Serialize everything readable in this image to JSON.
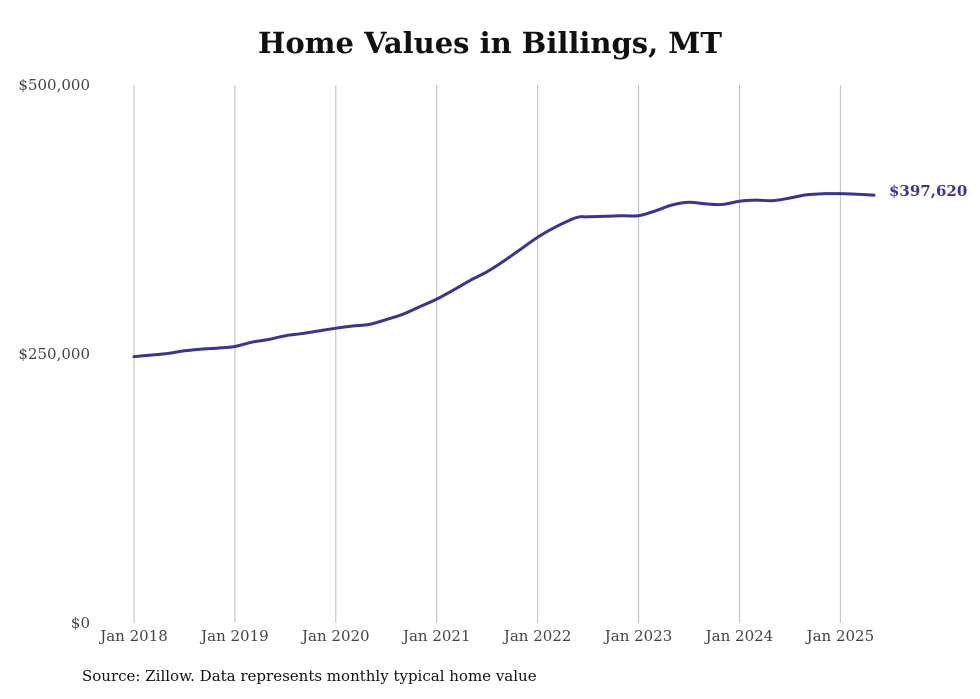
{
  "chart_data": {
    "type": "line",
    "title": "Home Values in Billings, MT",
    "source": "Source: Zillow. Data represents monthly typical home value",
    "xlabel": "",
    "ylabel": "",
    "ylim": [
      0,
      500000
    ],
    "yticks": [
      {
        "value": 0,
        "label": "$0"
      },
      {
        "value": 250000,
        "label": "$250,000"
      },
      {
        "value": 500000,
        "label": "$500,000"
      }
    ],
    "xlim": [
      "2018-01",
      "2025-05"
    ],
    "xticks": [
      {
        "value": "2018-01",
        "label": "Jan 2018"
      },
      {
        "value": "2019-01",
        "label": "Jan 2019"
      },
      {
        "value": "2020-01",
        "label": "Jan 2020"
      },
      {
        "value": "2021-01",
        "label": "Jan 2021"
      },
      {
        "value": "2022-01",
        "label": "Jan 2022"
      },
      {
        "value": "2023-01",
        "label": "Jan 2023"
      },
      {
        "value": "2024-01",
        "label": "Jan 2024"
      },
      {
        "value": "2025-01",
        "label": "Jan 2025"
      }
    ],
    "grid": {
      "vertical": true,
      "horizontal": false
    },
    "line_color": "#3a3591",
    "end_label": "$397,620",
    "series": [
      {
        "x": [
          "2018-01",
          "2018-03",
          "2018-05",
          "2018-07",
          "2018-09",
          "2018-11",
          "2019-01",
          "2019-03",
          "2019-05",
          "2019-07",
          "2019-09",
          "2019-11",
          "2020-01",
          "2020-03",
          "2020-05",
          "2020-07",
          "2020-09",
          "2020-11",
          "2021-01",
          "2021-03",
          "2021-05",
          "2021-07",
          "2021-09",
          "2021-11",
          "2022-01",
          "2022-03",
          "2022-05",
          "2022-06",
          "2022-07",
          "2022-09",
          "2022-11",
          "2023-01",
          "2023-03",
          "2023-05",
          "2023-07",
          "2023-09",
          "2023-11",
          "2024-01",
          "2024-03",
          "2024-05",
          "2024-07",
          "2024-09",
          "2024-11",
          "2025-01",
          "2025-03",
          "2025-05"
        ],
        "values": [
          247500,
          249000,
          250500,
          253000,
          254500,
          255500,
          257000,
          261000,
          263500,
          267000,
          269000,
          271500,
          274000,
          276000,
          277500,
          282000,
          287000,
          294000,
          301000,
          309500,
          318500,
          326500,
          336500,
          347500,
          358500,
          367500,
          375000,
          377500,
          377500,
          378000,
          378500,
          378500,
          383000,
          388500,
          391000,
          389500,
          389000,
          392000,
          393000,
          392500,
          395000,
          398000,
          399000,
          399000,
          398500,
          397620
        ]
      }
    ]
  }
}
